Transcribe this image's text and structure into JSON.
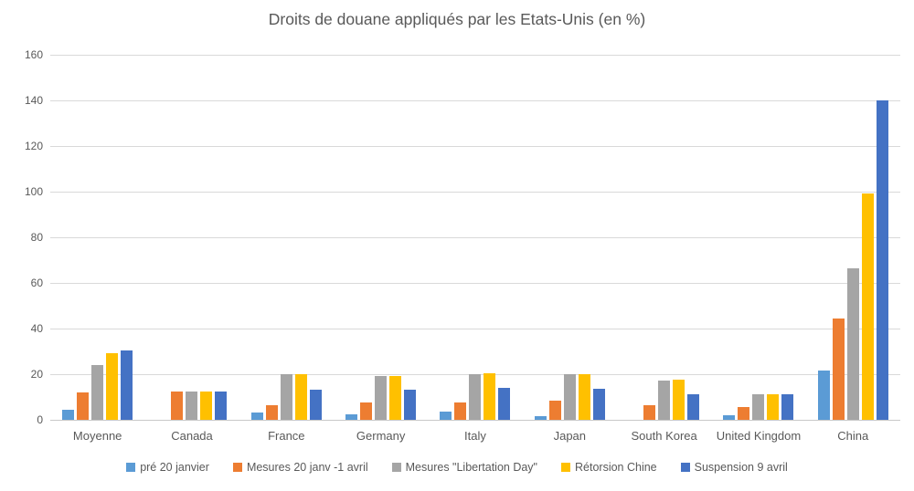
{
  "chart_data": {
    "type": "bar",
    "title": "Droits de douane appliqués par les Etats-Unis (en %)",
    "xlabel": "",
    "ylabel": "",
    "ylim": [
      0,
      160
    ],
    "ytick_step": 20,
    "yticks": [
      0,
      20,
      40,
      60,
      80,
      100,
      120,
      140,
      160
    ],
    "grid": true,
    "legend_position": "bottom",
    "categories": [
      "Moyenne",
      "Canada",
      "France",
      "Germany",
      "Italy",
      "Japan",
      "South Korea",
      "United Kingdom",
      "China"
    ],
    "series": [
      {
        "name": "pré 20 janvier",
        "color": "#5B9BD5",
        "values": [
          4.5,
          0,
          3,
          2.5,
          3.5,
          1.5,
          0,
          2,
          21.5
        ]
      },
      {
        "name": "Mesures 20 janv -1 avril",
        "color": "#ED7D31",
        "values": [
          12,
          12.5,
          6.5,
          7.5,
          7.5,
          8.5,
          6.5,
          5.5,
          44.5
        ]
      },
      {
        "name": "Mesures \"Libertation Day\"",
        "color": "#A5A5A5",
        "values": [
          24,
          12.5,
          20,
          19,
          20,
          20,
          17,
          11,
          66.5
        ]
      },
      {
        "name": "Rétorsion Chine",
        "color": "#FFC000",
        "values": [
          29,
          12.5,
          20,
          19,
          20.5,
          20,
          17.5,
          11,
          99
        ]
      },
      {
        "name": "Suspension 9 avril",
        "color": "#4472C4",
        "values": [
          30.5,
          12.5,
          13,
          13,
          14,
          13.5,
          11,
          11,
          140
        ]
      }
    ]
  },
  "colors": {
    "background": "#FFFFFF",
    "gridline": "#D9D9D9",
    "axis_text": "#595959",
    "title_text": "#595959"
  }
}
